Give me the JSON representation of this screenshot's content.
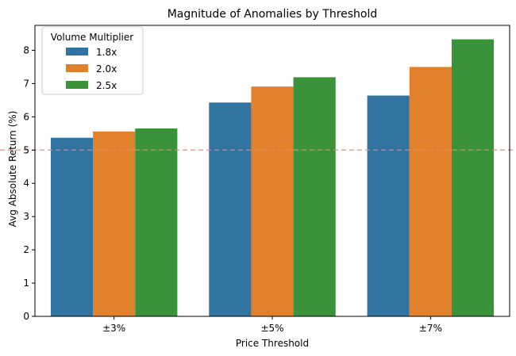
{
  "chart_data": {
    "type": "bar",
    "title": "Magnitude of Anomalies by Threshold",
    "xlabel": "Price Threshold",
    "ylabel": "Avg Absolute Return (%)",
    "categories": [
      "±3%",
      "±5%",
      "±7%"
    ],
    "ylim": [
      0,
      8.75
    ],
    "yticks": [
      0,
      1,
      2,
      3,
      4,
      5,
      6,
      7,
      8
    ],
    "grid": false,
    "legend": {
      "title": "Volume Multiplier",
      "placement": "top-left"
    },
    "series": [
      {
        "name": "1.8x",
        "color": "#3274a1",
        "values": [
          5.37,
          6.43,
          6.64
        ]
      },
      {
        "name": "2.0x",
        "color": "#e1812c",
        "values": [
          5.56,
          6.91,
          7.5
        ]
      },
      {
        "name": "2.5x",
        "color": "#3a923a",
        "values": [
          5.65,
          7.19,
          8.33
        ]
      }
    ],
    "reference_line": {
      "y": 5,
      "color": "#f08080",
      "style": "dashed"
    }
  }
}
